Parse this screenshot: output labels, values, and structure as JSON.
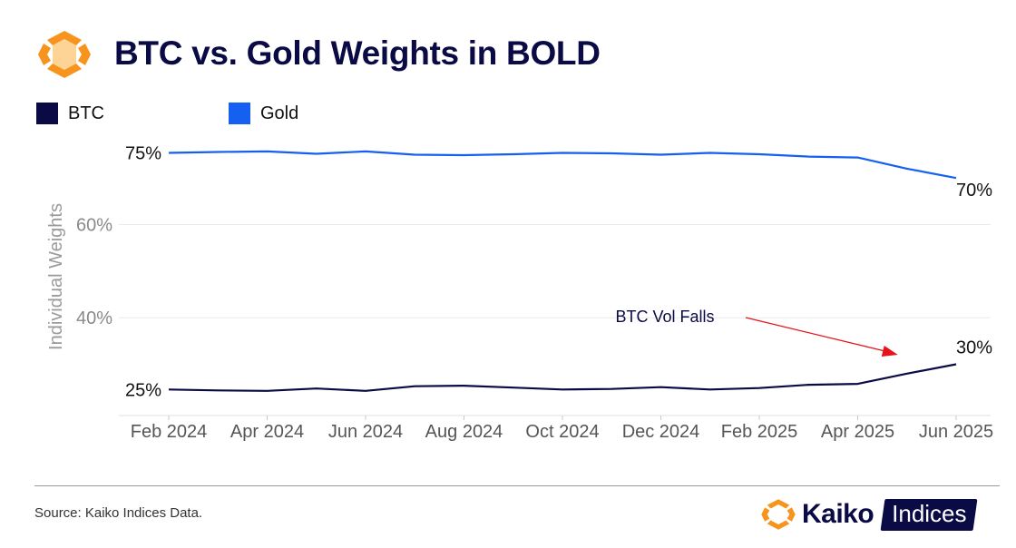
{
  "title": "BTC vs. Gold Weights in BOLD",
  "legend": [
    {
      "label": "BTC",
      "color": "#0a0a45"
    },
    {
      "label": "Gold",
      "color": "#1560f0"
    }
  ],
  "footer": {
    "source": "Source: Kaiko Indices Data.",
    "brand_word": "Kaiko",
    "brand_badge": "Indices"
  },
  "colors": {
    "accent_orange": "#f7941d",
    "navy": "#0a0a45",
    "blue": "#1560f0",
    "annotation_arrow": "#e8121c"
  },
  "chart_data": {
    "type": "line",
    "ylabel": "Individual Weights",
    "y_axis_ticks": [
      {
        "value": 40,
        "label": "40%"
      },
      {
        "value": 60,
        "label": "60%"
      }
    ],
    "ylim": [
      19,
      79
    ],
    "grid": "horizontal",
    "legend_position": "top-left",
    "x": [
      "2024-02-01",
      "2024-03-01",
      "2024-04-01",
      "2024-05-01",
      "2024-06-01",
      "2024-07-01",
      "2024-08-01",
      "2024-09-01",
      "2024-10-01",
      "2024-11-01",
      "2024-12-01",
      "2025-01-01",
      "2025-02-01",
      "2025-03-01",
      "2025-04-01",
      "2025-05-01",
      "2025-06-01"
    ],
    "x_ticks": [
      {
        "x": "2024-02-01",
        "label": "Feb 2024"
      },
      {
        "x": "2024-04-01",
        "label": "Apr 2024"
      },
      {
        "x": "2024-06-01",
        "label": "Jun 2024"
      },
      {
        "x": "2024-08-01",
        "label": "Aug 2024"
      },
      {
        "x": "2024-10-01",
        "label": "Oct 2024"
      },
      {
        "x": "2024-12-01",
        "label": "Dec 2024"
      },
      {
        "x": "2025-02-01",
        "label": "Feb 2025"
      },
      {
        "x": "2025-04-01",
        "label": "Apr 2025"
      },
      {
        "x": "2025-06-01",
        "label": "Jun 2025"
      }
    ],
    "series": [
      {
        "name": "BTC",
        "color": "#0a0a45",
        "values": [
          24.6,
          24.4,
          24.3,
          24.8,
          24.3,
          25.3,
          25.4,
          25.0,
          24.6,
          24.7,
          25.1,
          24.6,
          24.9,
          25.6,
          25.8,
          28.0,
          30.0
        ],
        "start_label": "25%",
        "end_label": "30%"
      },
      {
        "name": "Gold",
        "color": "#1560f0",
        "values": [
          75.4,
          75.6,
          75.7,
          75.2,
          75.7,
          75.0,
          74.9,
          75.1,
          75.4,
          75.3,
          75.0,
          75.4,
          75.1,
          74.6,
          74.4,
          72.0,
          70.0
        ],
        "start_label": "75%",
        "end_label": "70%"
      }
    ],
    "annotation": {
      "text": "BTC Vol Falls",
      "points_to": "2025-05-01"
    }
  }
}
